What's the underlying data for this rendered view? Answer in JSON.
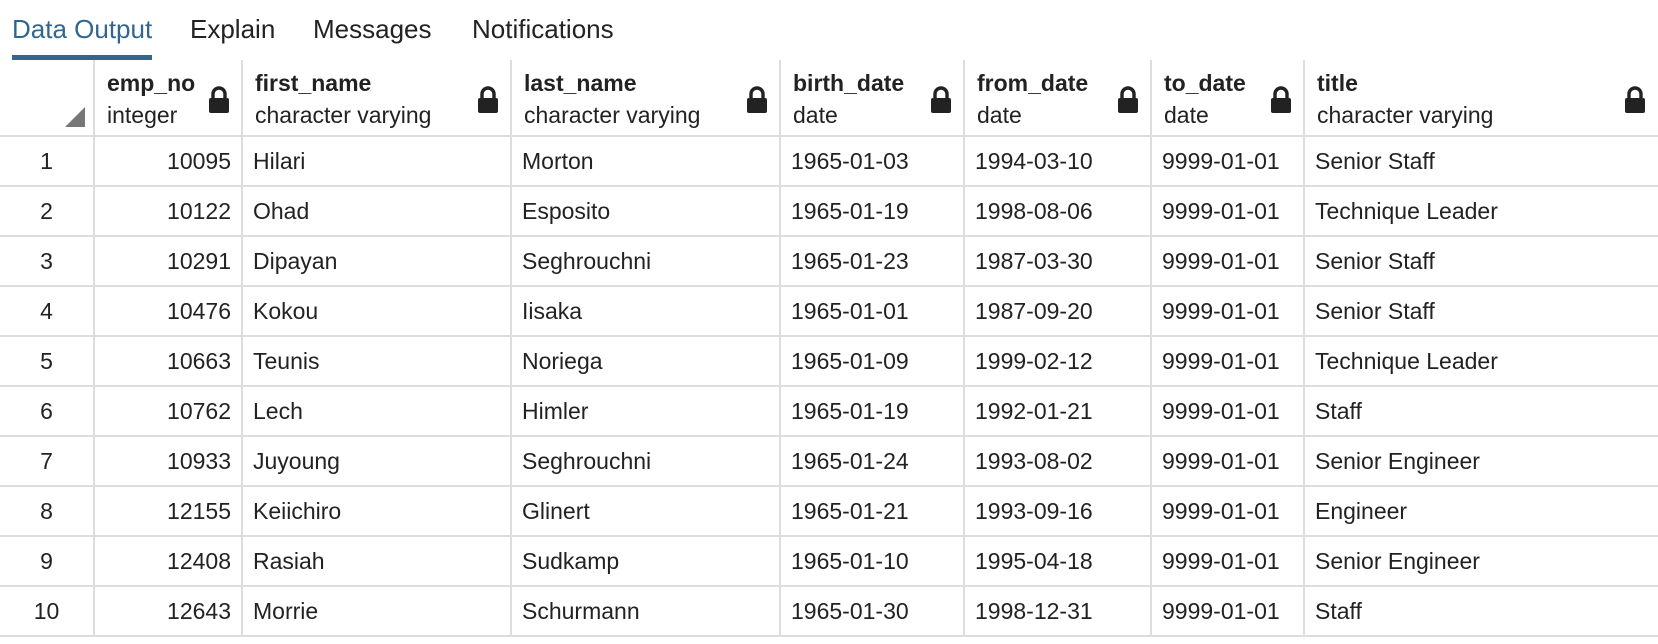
{
  "tabs": [
    {
      "label": "Data Output",
      "active": true
    },
    {
      "label": "Explain",
      "active": false
    },
    {
      "label": "Messages",
      "active": false
    },
    {
      "label": "Notifications",
      "active": false
    }
  ],
  "columns": [
    {
      "name": "emp_no",
      "type": "integer"
    },
    {
      "name": "first_name",
      "type": "character varying"
    },
    {
      "name": "last_name",
      "type": "character varying"
    },
    {
      "name": "birth_date",
      "type": "date"
    },
    {
      "name": "from_date",
      "type": "date"
    },
    {
      "name": "to_date",
      "type": "date"
    },
    {
      "name": "title",
      "type": "character varying"
    }
  ],
  "rows": [
    {
      "num": "1",
      "cells": [
        "10095",
        "Hilari",
        "Morton",
        "1965-01-03",
        "1994-03-10",
        "9999-01-01",
        "Senior Staff"
      ]
    },
    {
      "num": "2",
      "cells": [
        "10122",
        "Ohad",
        "Esposito",
        "1965-01-19",
        "1998-08-06",
        "9999-01-01",
        "Technique Leader"
      ]
    },
    {
      "num": "3",
      "cells": [
        "10291",
        "Dipayan",
        "Seghrouchni",
        "1965-01-23",
        "1987-03-30",
        "9999-01-01",
        "Senior Staff"
      ]
    },
    {
      "num": "4",
      "cells": [
        "10476",
        "Kokou",
        "Iisaka",
        "1965-01-01",
        "1987-09-20",
        "9999-01-01",
        "Senior Staff"
      ]
    },
    {
      "num": "5",
      "cells": [
        "10663",
        "Teunis",
        "Noriega",
        "1965-01-09",
        "1999-02-12",
        "9999-01-01",
        "Technique Leader"
      ]
    },
    {
      "num": "6",
      "cells": [
        "10762",
        "Lech",
        "Himler",
        "1965-01-19",
        "1992-01-21",
        "9999-01-01",
        "Staff"
      ]
    },
    {
      "num": "7",
      "cells": [
        "10933",
        "Juyoung",
        "Seghrouchni",
        "1965-01-24",
        "1993-08-02",
        "9999-01-01",
        "Senior Engineer"
      ]
    },
    {
      "num": "8",
      "cells": [
        "12155",
        "Keiichiro",
        "Glinert",
        "1965-01-21",
        "1993-09-16",
        "9999-01-01",
        "Engineer"
      ]
    },
    {
      "num": "9",
      "cells": [
        "12408",
        "Rasiah",
        "Sudkamp",
        "1965-01-10",
        "1995-04-18",
        "9999-01-01",
        "Senior Engineer"
      ]
    },
    {
      "num": "10",
      "cells": [
        "12643",
        "Morrie",
        "Schurmann",
        "1965-01-30",
        "1998-12-31",
        "9999-01-01",
        "Staff"
      ]
    }
  ],
  "icons": {
    "column_lock": "lock-icon",
    "select_all": "select-all-corner-icon"
  },
  "colors": {
    "accent": "#326690",
    "grid_line": "#dddddd"
  }
}
